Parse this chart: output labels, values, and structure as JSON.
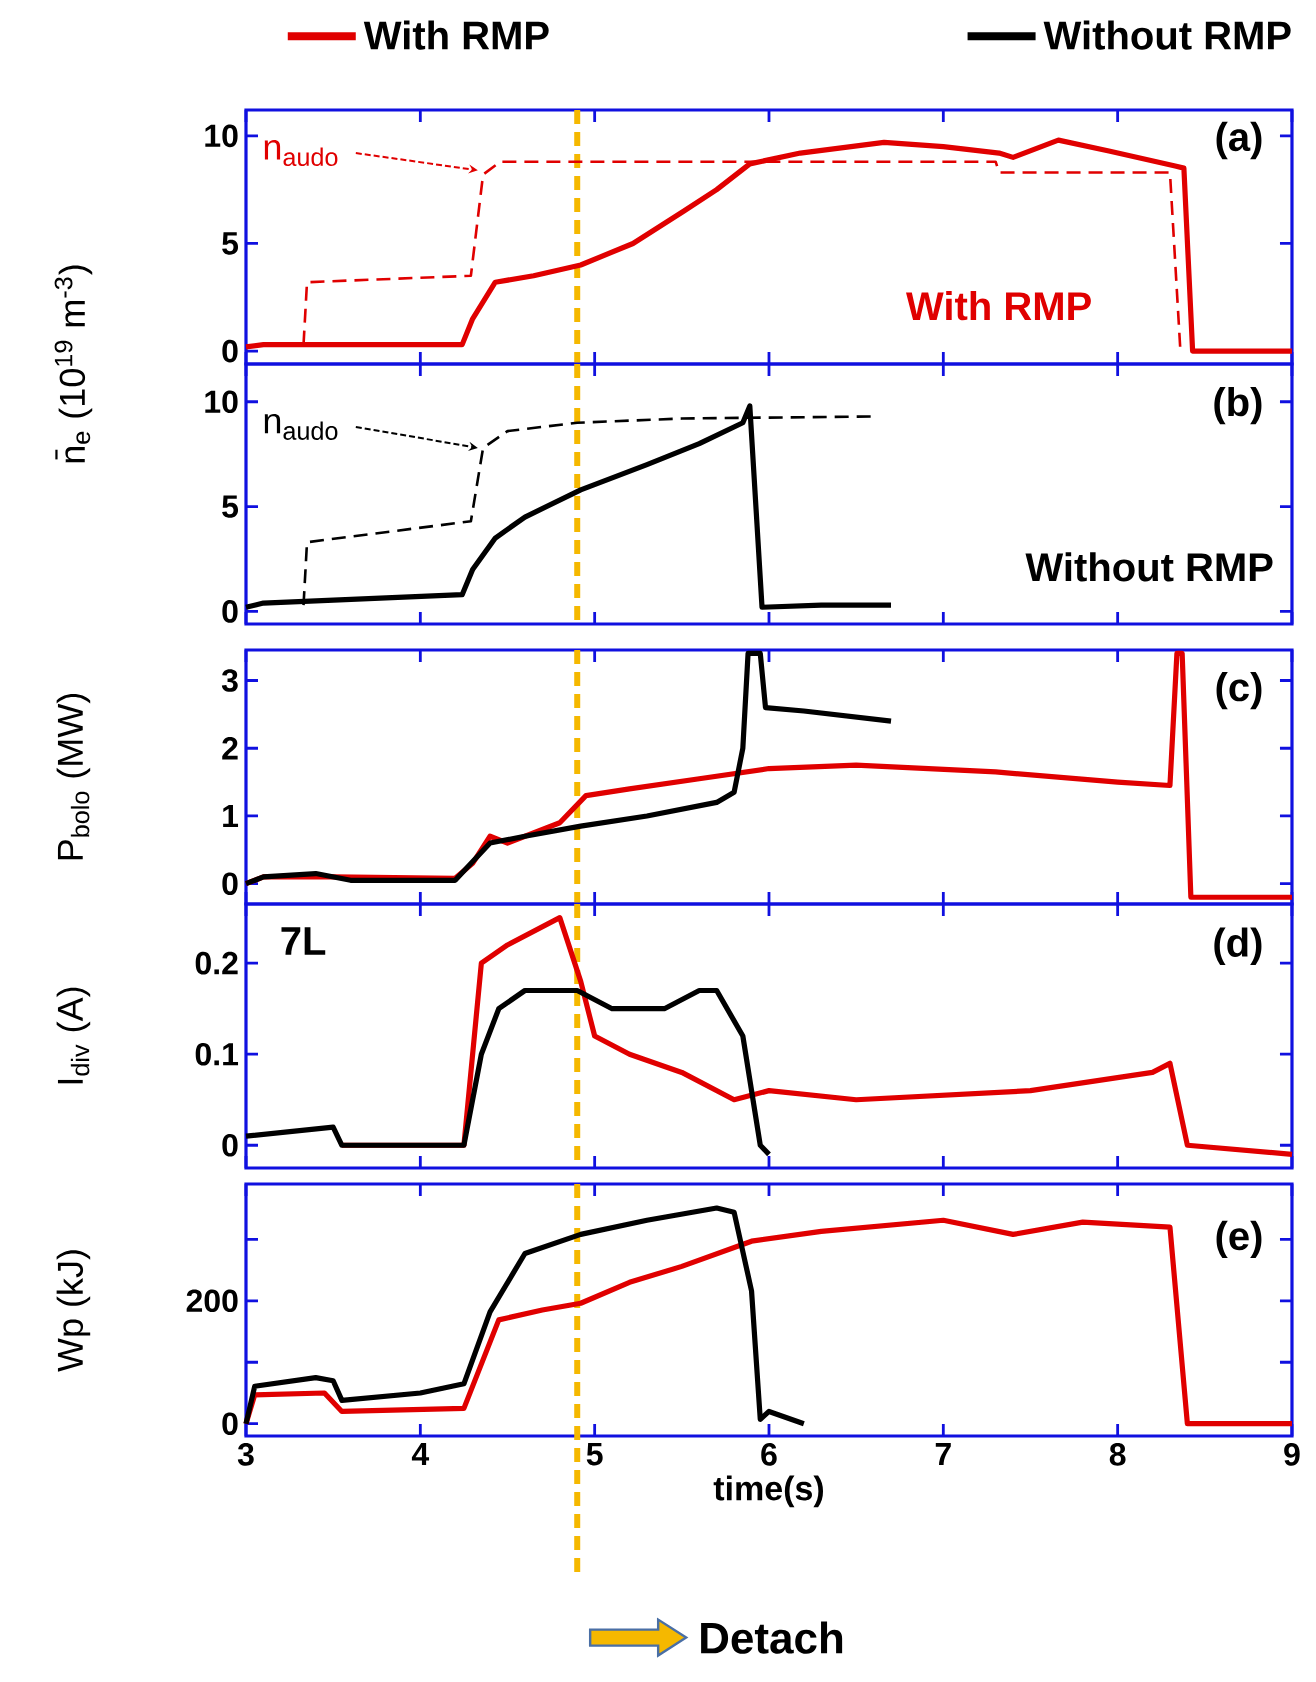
{
  "chart_data": [
    {
      "type": "line",
      "xlim": [
        3,
        9
      ],
      "xticks": [
        3,
        4,
        5,
        6,
        7,
        8,
        9
      ],
      "ylim": [
        -0.6,
        11.2
      ],
      "yticks": [
        0,
        5,
        10
      ],
      "tick_labels": "y",
      "ylabel": "n̄$_{e}$ (10$^{19}$ m$^{-3}$)",
      "legend": "top",
      "series": [
        {
          "name": "With RMP",
          "color": "#e00000",
          "x": [
            3,
            3.1,
            4.24,
            4.3,
            4.43,
            4.65,
            4.92,
            5.22,
            5.51,
            5.7,
            5.89,
            6.18,
            6.66,
            7.0,
            7.32,
            7.4,
            7.66,
            7.95,
            8.33,
            8.38,
            8.43,
            9
          ],
          "values": [
            0.2,
            0.3,
            0.3,
            1.5,
            3.2,
            3.5,
            4.0,
            5.0,
            6.5,
            7.5,
            8.7,
            9.2,
            9.7,
            9.5,
            9.2,
            9.0,
            9.8,
            9.3,
            8.6,
            8.5,
            0,
            0
          ]
        },
        {
          "color": "#e00000",
          "line_style": "dashed",
          "x": [
            3.33,
            3.35,
            4.29,
            4.36,
            4.46,
            7.3,
            7.32,
            8.3,
            8.36
          ],
          "values": [
            0.3,
            3.2,
            3.5,
            8.2,
            8.8,
            8.8,
            8.3,
            8.3,
            0
          ]
        }
      ],
      "ref_lines": [
        {
          "axis": "x",
          "value": 4.9,
          "color": "#f5b800",
          "line_style": "dashed"
        }
      ],
      "annotations": [
        {
          "text": "n$_{audo}$",
          "x": 4.35,
          "y": 8.4
        },
        "(a)",
        "With RMP"
      ]
    },
    {
      "type": "line",
      "xlim": [
        3,
        9
      ],
      "xticks": [
        3,
        4,
        5,
        6,
        7,
        8,
        9
      ],
      "ylim": [
        -0.6,
        11.8
      ],
      "yticks": [
        0,
        5,
        10
      ],
      "tick_labels": "y",
      "legend": "top",
      "series": [
        {
          "name": "Without RMP",
          "color": "#000000",
          "x": [
            3,
            3.1,
            4.24,
            4.3,
            4.43,
            4.6,
            4.92,
            5.3,
            5.6,
            5.85,
            5.89,
            5.96,
            6.3,
            6.7
          ],
          "values": [
            0.2,
            0.4,
            0.8,
            2.0,
            3.5,
            4.5,
            5.8,
            7.0,
            8.0,
            9.0,
            9.8,
            0.2,
            0.3,
            0.3
          ]
        },
        {
          "color": "#000000",
          "line_style": "dashed",
          "x": [
            3.33,
            3.35,
            4.29,
            4.36,
            4.5,
            4.9,
            5.5,
            6.6
          ],
          "values": [
            0.3,
            3.3,
            4.3,
            7.8,
            8.6,
            9.0,
            9.2,
            9.3
          ]
        }
      ],
      "ref_lines": [
        {
          "axis": "x",
          "value": 4.9,
          "color": "#f5b800",
          "line_style": "dashed"
        }
      ],
      "annotations": [
        {
          "text": "n$_{audo}$",
          "x": 4.35,
          "y": 7.8
        },
        "(b)",
        "Without RMP"
      ]
    },
    {
      "type": "line",
      "xlim": [
        3,
        9
      ],
      "xticks": [
        3,
        4,
        5,
        6,
        7,
        8,
        9
      ],
      "ylim": [
        -0.3,
        3.45
      ],
      "yticks": [
        0,
        1,
        2,
        3
      ],
      "tick_labels": "y",
      "ylabel": "P$_{bolo}$ (MW)",
      "series": [
        {
          "color": "#e00000",
          "x": [
            3,
            3.1,
            3.5,
            4.2,
            4.3,
            4.4,
            4.5,
            4.8,
            4.95,
            5.2,
            5.6,
            6.0,
            6.5,
            7.3,
            8.0,
            8.3,
            8.34,
            8.37,
            8.42,
            9
          ],
          "values": [
            0,
            0.1,
            0.1,
            0.08,
            0.3,
            0.7,
            0.6,
            0.9,
            1.3,
            1.4,
            1.55,
            1.7,
            1.75,
            1.65,
            1.5,
            1.45,
            3.4,
            3.4,
            -0.2,
            -0.2
          ]
        },
        {
          "color": "#000000",
          "x": [
            3,
            3.1,
            3.4,
            3.6,
            4.2,
            4.4,
            4.6,
            4.92,
            5.3,
            5.7,
            5.8,
            5.85,
            5.88,
            5.95,
            5.98,
            6.2,
            6.7
          ],
          "values": [
            0,
            0.1,
            0.15,
            0.05,
            0.05,
            0.6,
            0.7,
            0.85,
            1.0,
            1.2,
            1.35,
            2.0,
            3.4,
            3.4,
            2.6,
            2.55,
            2.4
          ]
        }
      ],
      "ref_lines": [
        {
          "axis": "x",
          "value": 4.9,
          "color": "#f5b800",
          "line_style": "dashed"
        }
      ],
      "annotations": [
        "(c)"
      ]
    },
    {
      "type": "line",
      "xlim": [
        3,
        9
      ],
      "xticks": [
        3,
        4,
        5,
        6,
        7,
        8,
        9
      ],
      "ylim": [
        -0.025,
        0.265
      ],
      "yticks": [
        0,
        0.1,
        0.2
      ],
      "tick_labels": "y",
      "ylabel": "I$_{div}$ (A)",
      "series": [
        {
          "color": "#e00000",
          "x": [
            3.55,
            4.25,
            4.35,
            4.5,
            4.7,
            4.8,
            4.92,
            5.0,
            5.2,
            5.5,
            5.8,
            6.0,
            6.5,
            7.5,
            8.2,
            8.3,
            8.4,
            9
          ],
          "values": [
            0.0,
            0.0,
            0.2,
            0.22,
            0.24,
            0.25,
            0.18,
            0.12,
            0.1,
            0.08,
            0.05,
            0.06,
            0.05,
            0.06,
            0.08,
            0.09,
            0,
            -0.01
          ]
        },
        {
          "color": "#000000",
          "x": [
            3,
            3.5,
            3.55,
            4.25,
            4.35,
            4.45,
            4.6,
            4.9,
            5.1,
            5.4,
            5.6,
            5.7,
            5.85,
            5.95,
            6.0
          ],
          "values": [
            0.01,
            0.02,
            0,
            0,
            0.1,
            0.15,
            0.17,
            0.17,
            0.15,
            0.15,
            0.17,
            0.17,
            0.12,
            0,
            -0.01
          ]
        }
      ],
      "ref_lines": [
        {
          "axis": "x",
          "value": 4.9,
          "color": "#f5b800",
          "line_style": "dashed"
        }
      ],
      "annotations": [
        "7L",
        "(d)"
      ]
    },
    {
      "type": "line",
      "xlim": [
        3,
        9
      ],
      "xticks": [
        3,
        4,
        5,
        6,
        7,
        8,
        9
      ],
      "ylim": [
        -20,
        390
      ],
      "yticks": [
        0,
        {
          "value": 100,
          "label": null
        },
        200,
        {
          "value": 300,
          "label": null
        }
      ],
      "ylabel": "Wp (kJ)",
      "xlabel": "time(s)",
      "series": [
        {
          "color": "#e00000",
          "x": [
            3,
            3.05,
            3.45,
            3.55,
            4.25,
            4.45,
            4.7,
            4.92,
            5.2,
            5.5,
            5.9,
            6.3,
            7.0,
            7.4,
            7.8,
            8.3,
            8.4,
            9
          ],
          "values": [
            0,
            47,
            50,
            20,
            25,
            169,
            185,
            196,
            230,
            256,
            297,
            313,
            331,
            308,
            328,
            320,
            0,
            0
          ]
        },
        {
          "color": "#000000",
          "x": [
            3,
            3.05,
            3.4,
            3.5,
            3.55,
            4.0,
            4.25,
            4.4,
            4.6,
            4.92,
            5.3,
            5.7,
            5.8,
            5.9,
            5.95,
            6.0,
            6.2
          ],
          "values": [
            0,
            61,
            75,
            70,
            38,
            50,
            65,
            182,
            277,
            308,
            331,
            351,
            344,
            216,
            7,
            20,
            0
          ]
        }
      ],
      "ref_lines": [
        {
          "axis": "x",
          "value": 4.9,
          "color": "#f5b800",
          "line_style": "dashed"
        }
      ],
      "annotations": [
        "(e)",
        "Detach"
      ]
    }
  ]
}
